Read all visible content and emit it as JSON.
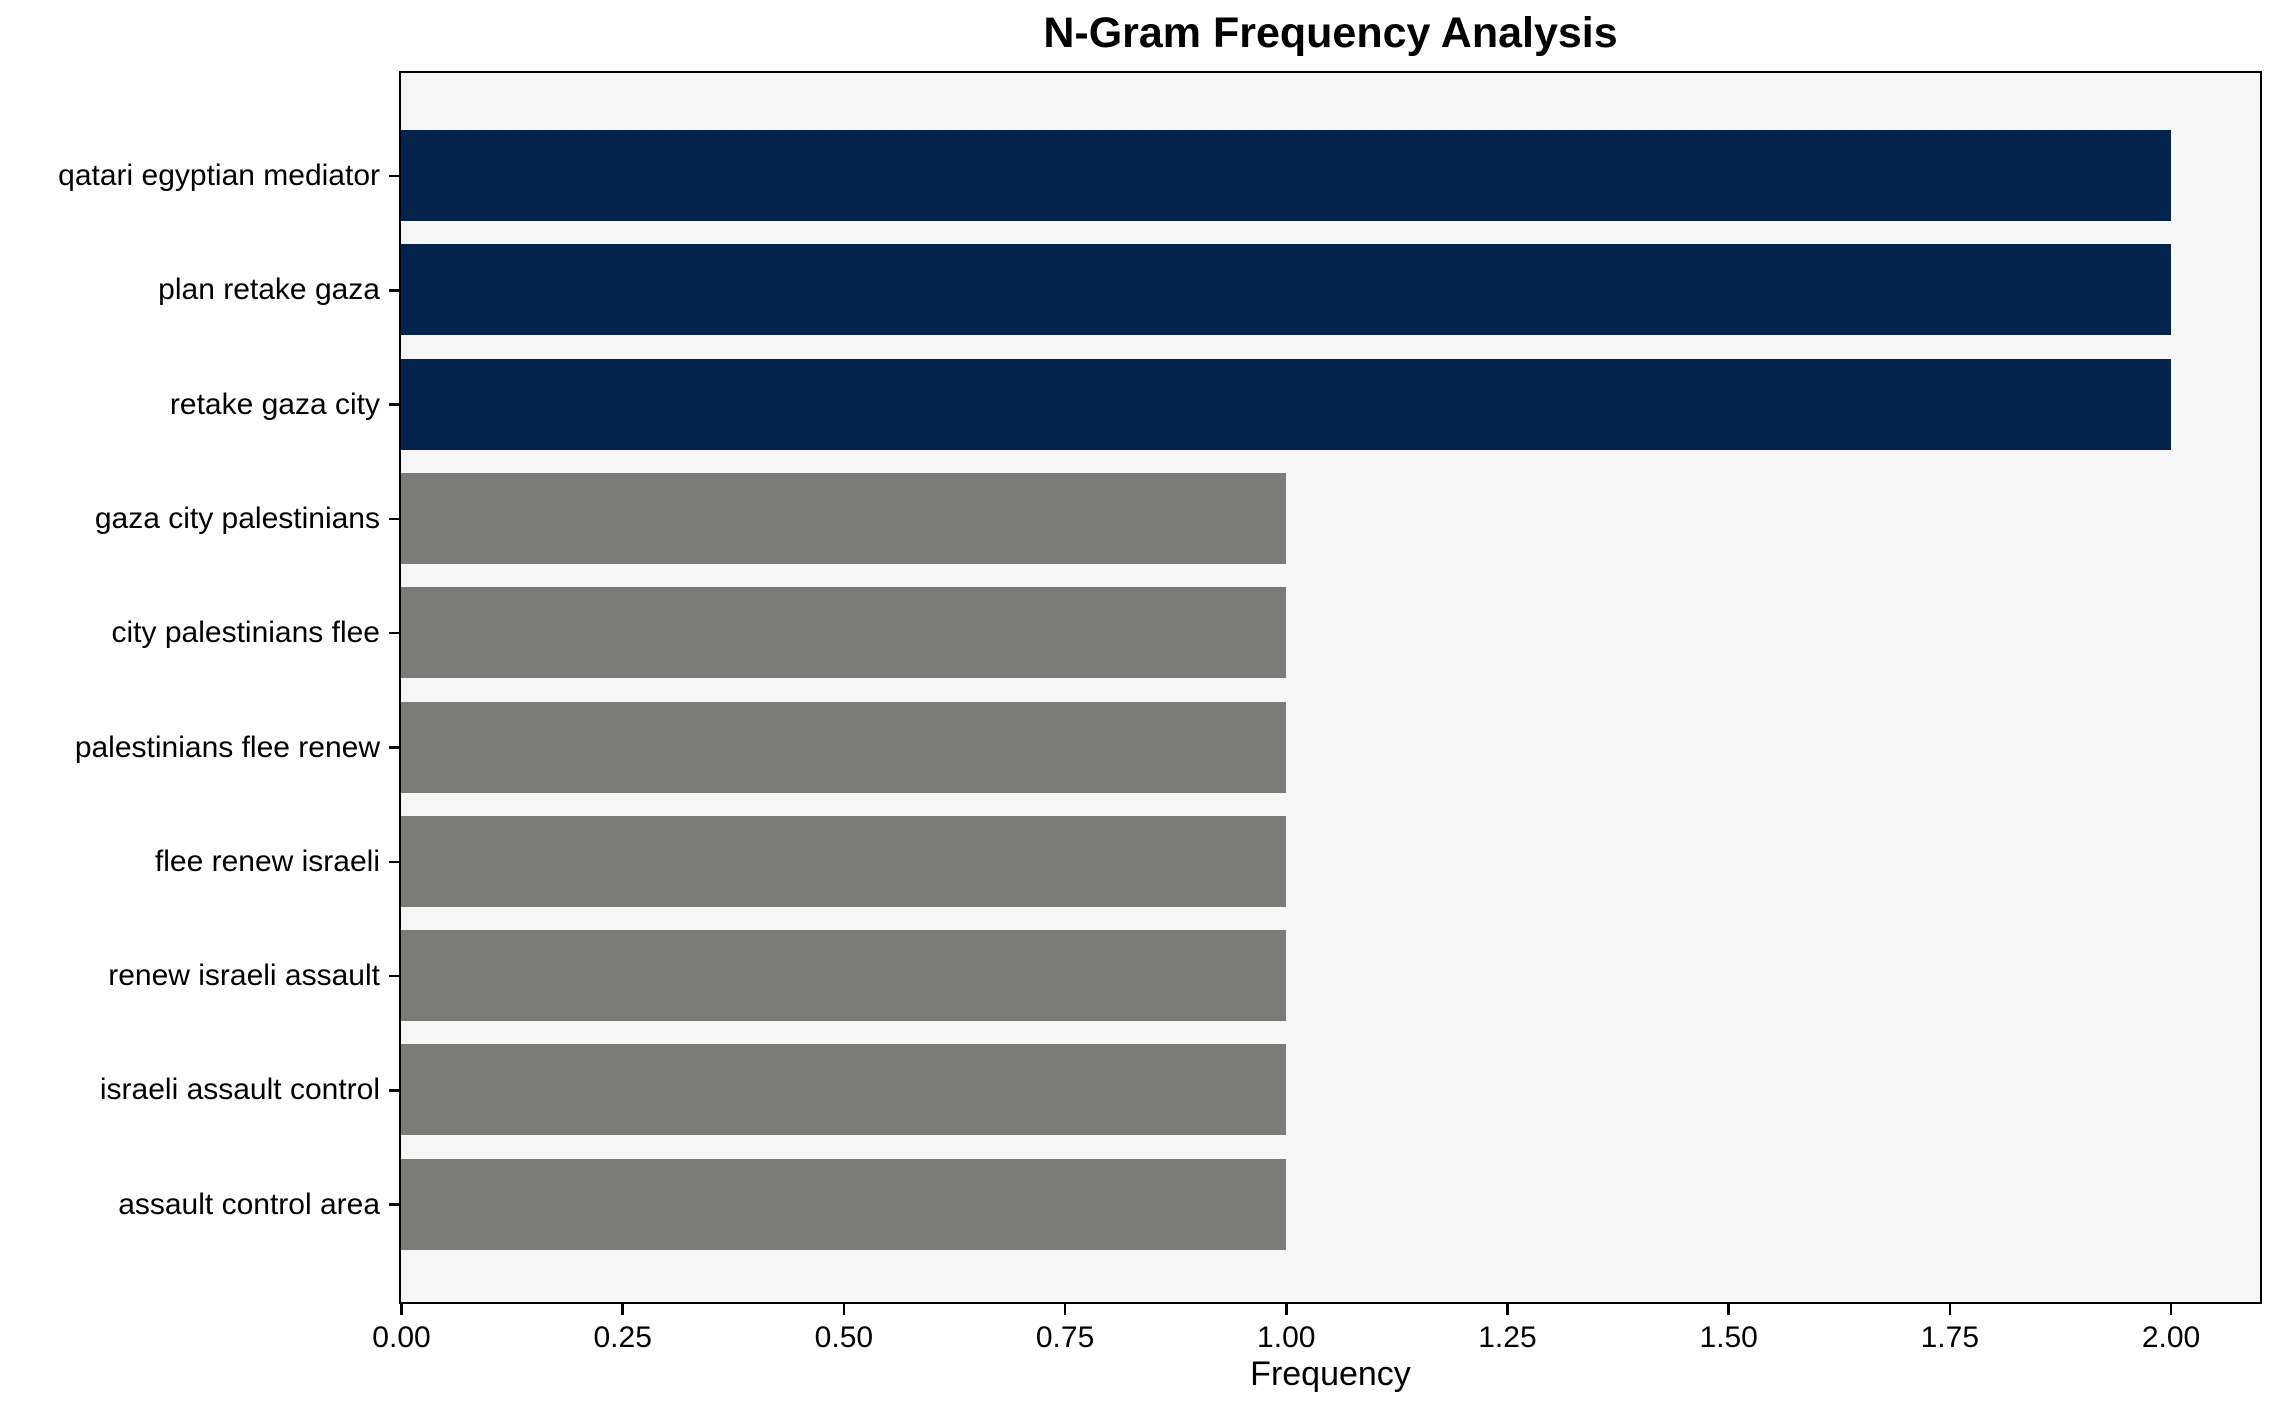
{
  "chart_data": {
    "type": "bar",
    "orientation": "horizontal",
    "title": "N-Gram Frequency Analysis",
    "xlabel": "Frequency",
    "ylabel": "",
    "categories": [
      "qatari egyptian mediator",
      "plan retake gaza",
      "retake gaza city",
      "gaza city palestinians",
      "city palestinians flee",
      "palestinians flee renew",
      "flee renew israeli",
      "renew israeli assault",
      "israeli assault control",
      "assault control area"
    ],
    "values": [
      2,
      2,
      2,
      1,
      1,
      1,
      1,
      1,
      1,
      1
    ],
    "bar_colors": [
      "#03234d",
      "#03234d",
      "#03234d",
      "#7b7b78",
      "#7b7b78",
      "#7b7b78",
      "#7b7b78",
      "#7b7b78",
      "#7b7b78",
      "#7b7b78"
    ],
    "x_tick_labels": [
      "0.00",
      "0.25",
      "0.50",
      "0.75",
      "1.00",
      "1.25",
      "1.50",
      "1.75",
      "2.00"
    ],
    "x_tick_values": [
      0,
      0.25,
      0.5,
      0.75,
      1.0,
      1.25,
      1.5,
      1.75,
      2.0
    ],
    "xlim": [
      0,
      2.1
    ],
    "grid": false,
    "legend": null,
    "colors": {
      "highlight": "#03234d",
      "default": "#7b7b78",
      "plot_background": "#f6f6f6",
      "figure_background": "#ffffff",
      "spine": "#000000",
      "text": "#000000"
    }
  }
}
